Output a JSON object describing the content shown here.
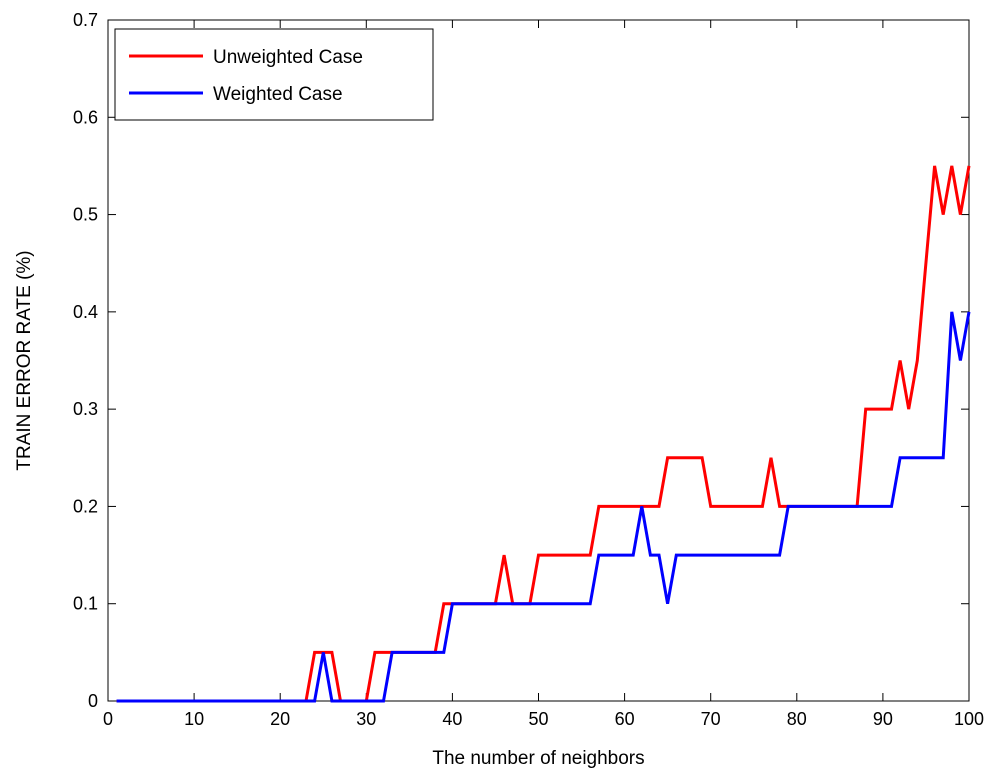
{
  "chart_data": {
    "type": "line",
    "title": "",
    "xlabel": "The number of neighbors",
    "ylabel": "TRAIN ERROR RATE (%)",
    "xlim": [
      0,
      100
    ],
    "ylim": [
      0,
      0.7
    ],
    "xticks": [
      0,
      10,
      20,
      30,
      40,
      50,
      60,
      70,
      80,
      90,
      100
    ],
    "xtick_labels": [
      "0",
      "10",
      "20",
      "30",
      "40",
      "50",
      "60",
      "70",
      "80",
      "90",
      "100"
    ],
    "yticks": [
      0,
      0.1,
      0.2,
      0.3,
      0.4,
      0.5,
      0.6,
      0.7
    ],
    "ytick_labels": [
      "0",
      "0.1",
      "0.2",
      "0.3",
      "0.4",
      "0.5",
      "0.6",
      "0.7"
    ],
    "grid": false,
    "legend_position": "top-left",
    "series": [
      {
        "name": "Unweighted Case",
        "color": "#ff0000",
        "x": [
          1,
          23,
          24,
          25,
          26,
          27,
          30,
          31,
          32,
          33,
          38,
          39,
          45,
          46,
          47,
          49,
          50,
          56,
          57,
          64,
          65,
          66,
          69,
          70,
          76,
          77,
          78,
          87,
          88,
          91,
          92,
          93,
          94,
          95,
          96,
          97,
          98,
          99,
          100
        ],
        "y": [
          0,
          0,
          0.05,
          0.05,
          0.05,
          0,
          0,
          0.05,
          0.05,
          0.05,
          0.05,
          0.1,
          0.1,
          0.15,
          0.1,
          0.1,
          0.15,
          0.15,
          0.2,
          0.2,
          0.25,
          0.25,
          0.25,
          0.2,
          0.2,
          0.25,
          0.2,
          0.2,
          0.3,
          0.3,
          0.35,
          0.3,
          0.35,
          0.45,
          0.55,
          0.5,
          0.55,
          0.5,
          0.55
        ]
      },
      {
        "name": "Weighted Case",
        "color": "#0000ff",
        "x": [
          1,
          24,
          25,
          26,
          31,
          32,
          33,
          39,
          40,
          56,
          57,
          61,
          62,
          63,
          64,
          65,
          66,
          78,
          79,
          91,
          92,
          97,
          98,
          99,
          100
        ],
        "y": [
          0,
          0,
          0.05,
          0,
          0,
          0,
          0.05,
          0.05,
          0.1,
          0.1,
          0.15,
          0.15,
          0.2,
          0.15,
          0.15,
          0.1,
          0.15,
          0.15,
          0.2,
          0.2,
          0.25,
          0.25,
          0.4,
          0.35,
          0.4
        ]
      }
    ]
  }
}
